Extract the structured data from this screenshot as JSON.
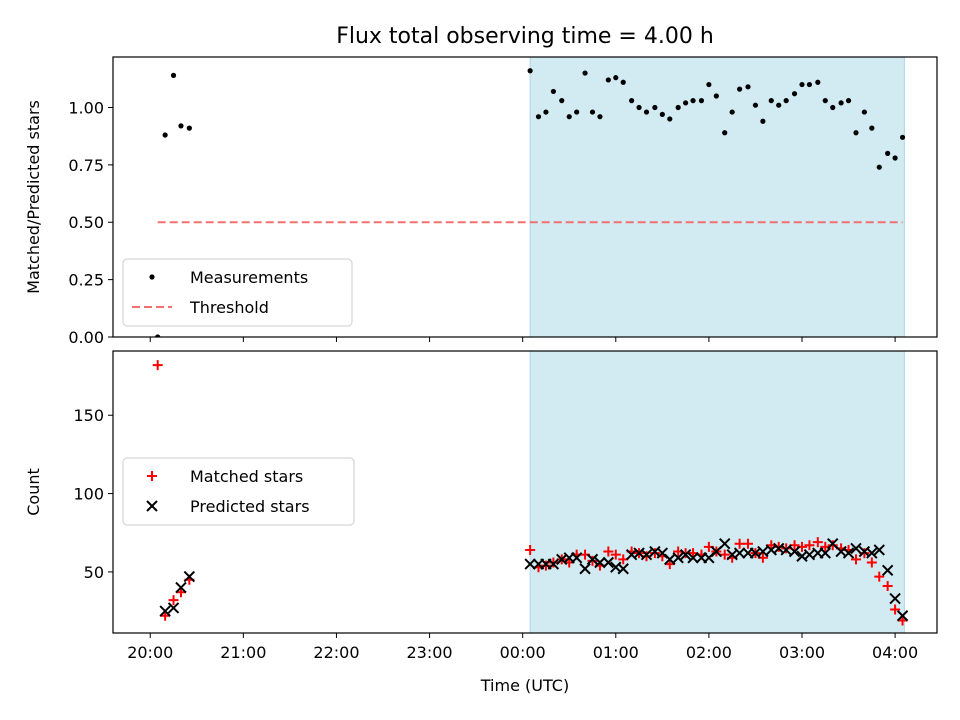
{
  "title": "Flux total observing time = 4.00 h",
  "colors": {
    "shade": "#add8e6",
    "measurement": "#000000",
    "threshold": "#f07070",
    "matched": "#ff0000",
    "predicted": "#000000"
  },
  "chart_data": [
    {
      "type": "scatter",
      "ylabel": "Matched/Predicted stars",
      "ylim": [
        0,
        1.22
      ],
      "yticks": [
        0.0,
        0.25,
        0.5,
        0.75,
        1.0
      ],
      "ytick_labels": [
        "0.00",
        "0.25",
        "0.50",
        "0.75",
        "1.00"
      ],
      "xlim_hours": [
        19.6,
        28.45
      ],
      "shaded_span_hours": [
        24.08,
        28.1
      ],
      "legend_placement": "lower-left",
      "series": [
        {
          "name": "Measurements",
          "marker": "dot",
          "points": [
            [
              20.08,
              0.0
            ],
            [
              20.16,
              0.88
            ],
            [
              20.25,
              1.14
            ],
            [
              20.33,
              0.92
            ],
            [
              20.42,
              0.91
            ],
            [
              24.08,
              1.16
            ],
            [
              24.17,
              0.96
            ],
            [
              24.25,
              0.98
            ],
            [
              24.33,
              1.07
            ],
            [
              24.42,
              1.03
            ],
            [
              24.5,
              0.96
            ],
            [
              24.58,
              0.98
            ],
            [
              24.67,
              1.15
            ],
            [
              24.75,
              0.98
            ],
            [
              24.83,
              0.96
            ],
            [
              24.92,
              1.12
            ],
            [
              25.0,
              1.13
            ],
            [
              25.08,
              1.11
            ],
            [
              25.17,
              1.03
            ],
            [
              25.25,
              1.0
            ],
            [
              25.33,
              0.98
            ],
            [
              25.42,
              1.0
            ],
            [
              25.5,
              0.97
            ],
            [
              25.58,
              0.95
            ],
            [
              25.67,
              1.0
            ],
            [
              25.75,
              1.02
            ],
            [
              25.83,
              1.03
            ],
            [
              25.92,
              1.03
            ],
            [
              26.0,
              1.1
            ],
            [
              26.08,
              1.05
            ],
            [
              26.17,
              0.89
            ],
            [
              26.25,
              0.98
            ],
            [
              26.33,
              1.08
            ],
            [
              26.42,
              1.09
            ],
            [
              26.5,
              1.01
            ],
            [
              26.58,
              0.94
            ],
            [
              26.67,
              1.03
            ],
            [
              26.75,
              1.01
            ],
            [
              26.83,
              1.03
            ],
            [
              26.92,
              1.06
            ],
            [
              27.0,
              1.1
            ],
            [
              27.08,
              1.1
            ],
            [
              27.17,
              1.11
            ],
            [
              27.25,
              1.03
            ],
            [
              27.33,
              1.0
            ],
            [
              27.42,
              1.02
            ],
            [
              27.5,
              1.03
            ],
            [
              27.58,
              0.89
            ],
            [
              27.67,
              0.98
            ],
            [
              27.75,
              0.91
            ],
            [
              27.83,
              0.74
            ],
            [
              27.92,
              0.8
            ],
            [
              28.0,
              0.78
            ],
            [
              28.08,
              0.87
            ]
          ]
        },
        {
          "name": "Threshold",
          "marker": "dashed-line",
          "points": [
            [
              20.08,
              0.5
            ],
            [
              28.08,
              0.5
            ]
          ]
        }
      ]
    },
    {
      "type": "scatter",
      "xlabel": "Time (UTC)",
      "ylabel": "Count",
      "ylim": [
        11,
        191
      ],
      "yticks": [
        50,
        100,
        150
      ],
      "ytick_labels": [
        "50",
        "100",
        "150"
      ],
      "xlim_hours": [
        19.6,
        28.45
      ],
      "xticks_hours": [
        20,
        21,
        22,
        23,
        24,
        25,
        26,
        27,
        28
      ],
      "xtick_labels": [
        "20:00",
        "21:00",
        "22:00",
        "23:00",
        "00:00",
        "01:00",
        "02:00",
        "03:00",
        "04:00"
      ],
      "shaded_span_hours": [
        24.08,
        28.1
      ],
      "legend_placement": "center-left",
      "series": [
        {
          "name": "Matched stars",
          "marker": "plus",
          "points": [
            [
              20.08,
              182
            ],
            [
              20.16,
              22
            ],
            [
              20.25,
              32
            ],
            [
              20.33,
              37
            ],
            [
              20.42,
              45
            ],
            [
              24.08,
              64
            ],
            [
              24.17,
              53
            ],
            [
              24.25,
              54
            ],
            [
              24.33,
              56
            ],
            [
              24.42,
              58
            ],
            [
              24.5,
              56
            ],
            [
              24.58,
              61
            ],
            [
              24.67,
              61
            ],
            [
              24.75,
              57
            ],
            [
              24.83,
              54
            ],
            [
              24.92,
              63
            ],
            [
              25.0,
              61
            ],
            [
              25.08,
              58
            ],
            [
              25.17,
              63
            ],
            [
              25.25,
              62
            ],
            [
              25.33,
              60
            ],
            [
              25.42,
              62
            ],
            [
              25.5,
              60
            ],
            [
              25.58,
              55
            ],
            [
              25.67,
              63
            ],
            [
              25.75,
              62
            ],
            [
              25.83,
              62
            ],
            [
              25.92,
              61
            ],
            [
              26.0,
              66
            ],
            [
              26.08,
              63
            ],
            [
              26.17,
              61
            ],
            [
              26.25,
              59
            ],
            [
              26.33,
              68
            ],
            [
              26.42,
              68
            ],
            [
              26.5,
              62
            ],
            [
              26.58,
              59
            ],
            [
              26.67,
              67
            ],
            [
              26.75,
              66
            ],
            [
              26.83,
              65
            ],
            [
              26.92,
              67
            ],
            [
              27.0,
              66
            ],
            [
              27.08,
              67
            ],
            [
              27.17,
              69
            ],
            [
              27.25,
              66
            ],
            [
              27.33,
              67
            ],
            [
              27.42,
              65
            ],
            [
              27.5,
              64
            ],
            [
              27.58,
              58
            ],
            [
              27.67,
              62
            ],
            [
              27.75,
              56
            ],
            [
              27.83,
              47
            ],
            [
              27.92,
              41
            ],
            [
              28.0,
              26
            ],
            [
              28.08,
              19
            ]
          ]
        },
        {
          "name": "Predicted stars",
          "marker": "cross",
          "points": [
            [
              20.16,
              25
            ],
            [
              20.25,
              27
            ],
            [
              20.33,
              40
            ],
            [
              20.42,
              47
            ],
            [
              24.08,
              55
            ],
            [
              24.17,
              55
            ],
            [
              24.25,
              55
            ],
            [
              24.33,
              55
            ],
            [
              24.42,
              58
            ],
            [
              24.5,
              59
            ],
            [
              24.58,
              59
            ],
            [
              24.67,
              52
            ],
            [
              24.75,
              58
            ],
            [
              24.83,
              56
            ],
            [
              24.92,
              56
            ],
            [
              25.0,
              53
            ],
            [
              25.08,
              52
            ],
            [
              25.17,
              61
            ],
            [
              25.25,
              62
            ],
            [
              25.33,
              61
            ],
            [
              25.42,
              63
            ],
            [
              25.5,
              62
            ],
            [
              25.58,
              58
            ],
            [
              25.67,
              59
            ],
            [
              25.75,
              61
            ],
            [
              25.83,
              59
            ],
            [
              25.92,
              59
            ],
            [
              26.0,
              59
            ],
            [
              26.08,
              63
            ],
            [
              26.17,
              68
            ],
            [
              26.25,
              61
            ],
            [
              26.33,
              62
            ],
            [
              26.42,
              62
            ],
            [
              26.5,
              62
            ],
            [
              26.58,
              63
            ],
            [
              26.67,
              64
            ],
            [
              26.75,
              65
            ],
            [
              26.83,
              64
            ],
            [
              26.92,
              63
            ],
            [
              27.0,
              60
            ],
            [
              27.08,
              61
            ],
            [
              27.17,
              62
            ],
            [
              27.25,
              62
            ],
            [
              27.33,
              68
            ],
            [
              27.42,
              63
            ],
            [
              27.5,
              62
            ],
            [
              27.58,
              65
            ],
            [
              27.67,
              63
            ],
            [
              27.75,
              62
            ],
            [
              27.83,
              64
            ],
            [
              27.92,
              51
            ],
            [
              28.0,
              33
            ],
            [
              28.08,
              22
            ]
          ]
        }
      ]
    }
  ]
}
